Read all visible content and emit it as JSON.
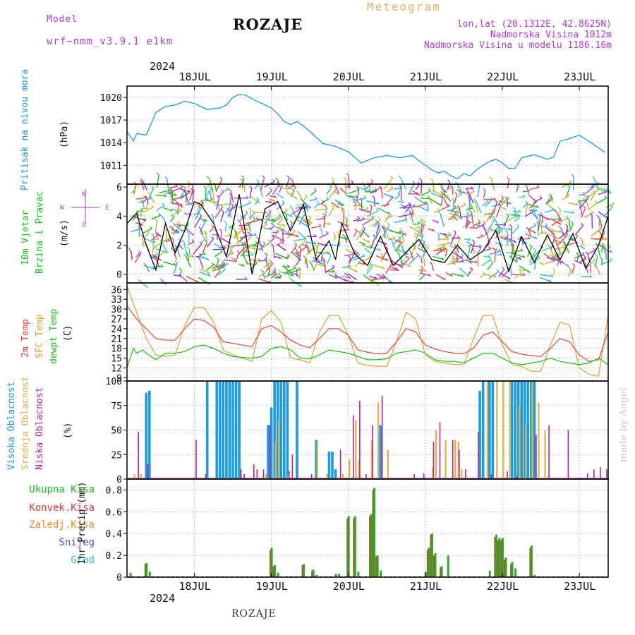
{
  "header": {
    "model_label": "Model",
    "model_name": "wrf−nmm_v3.9.1  e1km",
    "title": "ROZAJE",
    "meteogram": "Meteogram",
    "lonlat": "lon,lat (20.1312E, 42.8625N)",
    "elev": "Nadmorska Visina 1012m",
    "elev_model": "Nadmorska Visina u modelu 1186.16m"
  },
  "time_axis": {
    "year": "2024",
    "days": [
      "18JUL",
      "19JUL",
      "20JUL",
      "21JUL",
      "22JUL",
      "23JUL"
    ]
  },
  "footer": {
    "station": "ROZAJE",
    "credit": "made by Angel"
  },
  "colors": {
    "pressure": "#1a9be6",
    "wind_black": "#000000",
    "t2m": "#e8453c",
    "sfc": "#e0a030",
    "dewpt": "#18c018",
    "high_cloud": "#1a9be6",
    "mid_cloud": "#e0b040",
    "low_cloud": "#c0208c",
    "precip_total": "#2fa82f",
    "precip_conv": "#e83838",
    "precip_frozen": "#f08a30",
    "snow": "#5050e8",
    "graupel": "#30c8c8"
  },
  "labels": {
    "pressure": [
      "Pritisak na nivou mora",
      "(hPa)"
    ],
    "wind": [
      "10m Vjetar",
      "Brzina i Pravac",
      "(m/s)"
    ],
    "compass": {
      "n": "N",
      "s": "S",
      "w": "W",
      "e": "E"
    },
    "temp": [
      "2m Temp",
      "SFC Temp",
      "dewpt Temp",
      "(C)"
    ],
    "cloud": [
      "Visoka Oblacnost",
      "Srednja Oblacnost",
      "Niska  Oblacnost",
      "(%)"
    ],
    "precip": [
      "Ukupna  Kisa",
      "Konvek.Kisa",
      "Zaledj.Kisa",
      "Snijeg",
      "Grad",
      "1hr Precip (mm)"
    ]
  },
  "chart_data": [
    {
      "type": "line",
      "title": "",
      "ylabel": "(hPa)",
      "yticks": [
        "1011",
        "1014",
        "1017",
        "1020"
      ],
      "ylim": [
        1008.5,
        1021.5
      ],
      "x_unit": "hours since 18JUL 00:00",
      "xlim": [
        -9,
        141
      ],
      "grid": true,
      "series": [
        {
          "name": "Pritisak na nivou mora",
          "x": [
            -9,
            -7,
            -6,
            -3,
            0,
            3,
            6,
            9,
            12,
            14,
            16,
            18,
            20,
            22,
            24,
            26,
            28,
            30,
            32,
            34,
            36,
            38,
            40,
            42,
            44,
            46,
            48,
            52,
            56,
            60,
            64,
            68,
            72,
            76,
            80,
            82,
            84,
            86,
            88,
            90,
            92,
            94,
            96,
            98,
            100,
            102,
            104,
            106,
            108,
            110,
            112,
            114,
            116,
            118,
            120,
            122,
            124,
            126,
            128,
            132,
            136,
            140
          ],
          "y": [
            1015.5,
            1014.2,
            1015.2,
            1015.0,
            1018.0,
            1018.8,
            1019.0,
            1019.5,
            1019.2,
            1018.8,
            1018.4,
            1018.5,
            1018.6,
            1019.0,
            1020.0,
            1020.4,
            1020.3,
            1019.8,
            1019.4,
            1019.0,
            1018.6,
            1017.8,
            1016.8,
            1016.4,
            1016.8,
            1016.2,
            1015.5,
            1013.9,
            1013.5,
            1012.8,
            1011.3,
            1012.0,
            1012.3,
            1012.0,
            1012.3,
            1011.6,
            1011.0,
            1010.4,
            1010.0,
            1010.2,
            1009.6,
            1009.2,
            1009.9,
            1009.6,
            1010.4,
            1011.0,
            1011.5,
            1011.8,
            1011.3,
            1010.6,
            1010.6,
            1012.0,
            1012.2,
            1012.4,
            1012.1,
            1011.8,
            1012.1,
            1014.2,
            1014.4,
            1015.0,
            1013.9,
            1012.7
          ]
        }
      ]
    },
    {
      "type": "line",
      "title": "",
      "ylabel": "(m/s)",
      "yticks": [
        "0",
        "2",
        "4",
        "6"
      ],
      "ylim": [
        -0.6,
        6.2
      ],
      "xlim": [
        -9,
        141
      ],
      "grid": true,
      "series": [
        {
          "name": "10m Vjetar Brzina",
          "x": [
            -9,
            -6,
            -3,
            0,
            3,
            6,
            9,
            12,
            14,
            18,
            22,
            26,
            30,
            34,
            38,
            42,
            46,
            50,
            54,
            56,
            58,
            62,
            66,
            70,
            74,
            78,
            82,
            86,
            90,
            94,
            98,
            102,
            106,
            110,
            114,
            118,
            122,
            126,
            130,
            134,
            138,
            141
          ],
          "y": [
            3.5,
            4.2,
            2.0,
            0.3,
            3.5,
            1.5,
            3.0,
            5.0,
            4.8,
            3.5,
            1.2,
            5.5,
            0.0,
            4.5,
            5.0,
            3.0,
            4.8,
            1.0,
            2.3,
            1.0,
            3.5,
            1.4,
            0.6,
            2.6,
            0.6,
            1.5,
            2.4,
            1.0,
            0.8,
            2.0,
            1.0,
            1.6,
            3.0,
            0.2,
            2.6,
            0.8,
            2.7,
            1.0,
            2.8,
            0.4,
            2.0,
            4.0
          ]
        }
      ]
    },
    {
      "type": "line",
      "title": "",
      "ylabel": "(C)",
      "yticks": [
        "9",
        "12",
        "15",
        "18",
        "21",
        "24",
        "27",
        "30",
        "33",
        "36"
      ],
      "ylim": [
        8,
        38
      ],
      "xlim": [
        -9,
        141
      ],
      "grid": true,
      "series": [
        {
          "name": "2m Temp",
          "x": [
            -9,
            -6,
            -3,
            0,
            3,
            6,
            9,
            12,
            15,
            18,
            21,
            24,
            27,
            30,
            33,
            36,
            39,
            42,
            45,
            48,
            51,
            54,
            57,
            60,
            63,
            66,
            69,
            72,
            75,
            78,
            81,
            84,
            87,
            90,
            93,
            96,
            99,
            102,
            105,
            108,
            111,
            114,
            117,
            120,
            123,
            126,
            129,
            132,
            135,
            138,
            141
          ],
          "y": [
            31,
            27,
            24,
            21,
            20.5,
            20.5,
            24,
            27,
            26.5,
            24.5,
            20,
            19.5,
            19,
            18.5,
            24,
            25,
            23,
            20.5,
            19,
            18.2,
            21,
            24,
            24,
            22,
            17.5,
            16.8,
            16.3,
            16.5,
            20,
            24,
            23,
            19,
            17.8,
            17,
            16.5,
            16.3,
            18,
            22,
            23,
            20,
            17,
            16.2,
            15.8,
            15.5,
            18,
            21,
            20,
            16,
            14,
            14.5,
            23
          ]
        },
        {
          "name": "SFC Temp",
          "x": [
            -9,
            -6,
            -3,
            0,
            3,
            6,
            9,
            12,
            15,
            18,
            21,
            24,
            27,
            30,
            33,
            36,
            39,
            42,
            45,
            48,
            51,
            54,
            57,
            60,
            63,
            66,
            69,
            72,
            75,
            78,
            81,
            84,
            87,
            90,
            93,
            96,
            99,
            102,
            105,
            108,
            111,
            114,
            117,
            120,
            123,
            126,
            129,
            132,
            135,
            138,
            141
          ],
          "y": [
            37,
            29,
            21,
            16,
            15.5,
            16,
            25,
            30.5,
            30.5,
            26,
            17.5,
            16,
            15,
            14,
            27,
            29.5,
            26,
            15,
            14.5,
            13.5,
            23,
            28,
            28,
            22,
            13.5,
            12.8,
            12.5,
            12.5,
            20,
            29,
            27,
            16,
            14,
            13.5,
            13,
            13,
            21,
            28,
            28,
            19,
            13,
            12.5,
            11,
            11,
            19,
            26,
            25,
            12,
            10,
            9.5,
            28
          ]
        },
        {
          "name": "dewpt Temp",
          "x": [
            -9,
            -7,
            -6,
            -4,
            -3,
            0,
            3,
            6,
            9,
            12,
            15,
            18,
            21,
            24,
            27,
            30,
            33,
            36,
            39,
            42,
            45,
            48,
            51,
            54,
            57,
            60,
            63,
            66,
            69,
            72,
            75,
            78,
            81,
            84,
            87,
            90,
            93,
            96,
            99,
            102,
            105,
            108,
            111,
            114,
            117,
            120,
            123,
            126,
            129,
            132,
            135,
            138,
            141
          ],
          "y": [
            12,
            18,
            16.5,
            17.5,
            16.5,
            14.5,
            16.5,
            16.5,
            17,
            18.5,
            19,
            18,
            16.5,
            15.5,
            15.2,
            15,
            15.5,
            18,
            18.5,
            17.5,
            15,
            14.8,
            16,
            17.5,
            17,
            16.5,
            15.5,
            14.5,
            14.5,
            14.8,
            16.5,
            17,
            17.5,
            16.5,
            14.5,
            14,
            14,
            13.5,
            15,
            16.5,
            16.5,
            15,
            13.5,
            13,
            13.5,
            14,
            15,
            14,
            13.5,
            13,
            13.5,
            15,
            13
          ]
        }
      ]
    },
    {
      "type": "bar",
      "title": "",
      "ylabel": "(%)",
      "yticks": [
        "0",
        "25",
        "50",
        "75",
        "100"
      ],
      "ylim": [
        0,
        100
      ],
      "xlim": [
        -9,
        141
      ],
      "grid": true,
      "series": [
        {
          "name": "Visoka Oblacnost",
          "x": [
            -3,
            -2,
            16,
            19,
            20,
            21,
            22,
            23,
            24,
            25,
            26,
            35,
            36,
            37,
            38,
            39,
            40,
            41,
            44,
            50,
            54,
            55,
            56,
            70,
            101,
            102,
            104,
            105,
            111,
            112,
            113,
            114,
            115,
            116,
            117,
            118
          ],
          "values": [
            88,
            90,
            100,
            100,
            100,
            100,
            100,
            100,
            100,
            100,
            100,
            55,
            73,
            100,
            100,
            100,
            100,
            100,
            100,
            40,
            28,
            28,
            10,
            55,
            90,
            100,
            100,
            100,
            100,
            100,
            100,
            100,
            100,
            100,
            100,
            100
          ]
        },
        {
          "name": "Srednja Oblacnost",
          "x": [
            -7,
            -5,
            12,
            34,
            37,
            38,
            41,
            50,
            53,
            58,
            60,
            62,
            63,
            67,
            69,
            72,
            86,
            87,
            90,
            93,
            94,
            95,
            103,
            106,
            108,
            110,
            113,
            115,
            117,
            119,
            121
          ],
          "values": [
            5,
            5,
            2,
            5,
            38,
            60,
            5,
            38,
            5,
            5,
            20,
            60,
            20,
            40,
            78,
            30,
            12,
            50,
            40,
            40,
            38,
            10,
            100,
            100,
            100,
            100,
            75,
            55,
            100,
            78,
            50
          ]
        },
        {
          "name": "Niska  Oblacnost",
          "x": [
            -6,
            -3,
            12,
            15,
            26,
            27,
            30,
            31,
            33,
            35,
            41,
            42,
            48,
            57,
            61,
            63,
            65,
            67,
            70,
            80,
            83,
            86,
            88,
            92,
            94,
            96,
            100,
            104,
            109,
            112,
            118,
            122,
            128,
            134,
            136,
            138,
            140
          ],
          "values": [
            48,
            15,
            40,
            5,
            10,
            5,
            15,
            10,
            10,
            55,
            8,
            25,
            5,
            30,
            65,
            80,
            5,
            55,
            85,
            5,
            6,
            38,
            58,
            40,
            30,
            10,
            48,
            5,
            8,
            3,
            45,
            55,
            50,
            6,
            10,
            12,
            10
          ]
        }
      ]
    },
    {
      "type": "bar",
      "title": "",
      "ylabel": "1hr Precip (mm)",
      "yticks": [
        "0",
        "0.2",
        "0.4",
        "0.6",
        "0.8"
      ],
      "ylim": [
        0,
        0.9
      ],
      "xlim": [
        -9,
        141
      ],
      "grid": true,
      "series": [
        {
          "name": "Ukupna  Kisa",
          "x": [
            -8,
            -3,
            -2,
            36,
            37,
            38,
            46,
            49,
            50,
            56,
            57,
            60,
            62,
            63,
            67,
            68,
            69,
            70,
            84,
            85,
            86,
            87,
            89,
            91,
            104,
            106,
            107,
            108,
            109,
            111,
            112,
            117,
            118
          ],
          "values": [
            0.04,
            0.13,
            0.05,
            0.27,
            0.11,
            0.04,
            0.12,
            0.07,
            0.02,
            0.03,
            0.03,
            0.56,
            0.56,
            0.05,
            0.58,
            0.82,
            0.2,
            0.06,
            0.05,
            0.27,
            0.4,
            0.22,
            0.1,
            0.2,
            0.06,
            0.39,
            0.36,
            0.36,
            0.18,
            0.14,
            0.08,
            0.29,
            0.02
          ]
        },
        {
          "name": "Konvek.Kisa",
          "x": [
            -3,
            36,
            37,
            46,
            49,
            60,
            62,
            67,
            68,
            69,
            85,
            86,
            87,
            89,
            106,
            107,
            108,
            109,
            111,
            117
          ],
          "values": [
            0.12,
            0.25,
            0.1,
            0.11,
            0.06,
            0.54,
            0.54,
            0.56,
            0.8,
            0.19,
            0.25,
            0.39,
            0.2,
            0.09,
            0.37,
            0.34,
            0.34,
            0.16,
            0.12,
            0.27
          ]
        }
      ]
    }
  ]
}
